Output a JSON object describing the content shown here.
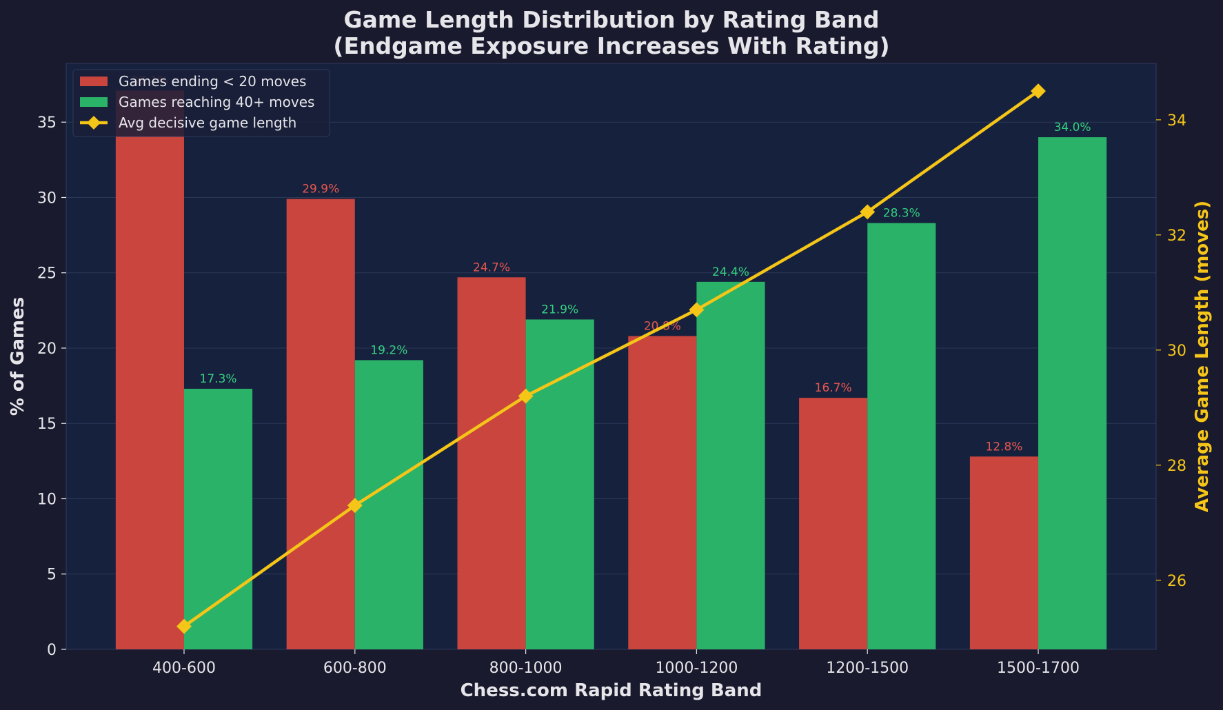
{
  "chart_data": {
    "type": "bar",
    "title": "Game Length Distribution by Rating Band",
    "subtitle": "(Endgame Exposure Increases With Rating)",
    "xlabel": "Chess.com Rapid Rating Band",
    "ylabel": "% of Games",
    "y2label": "Average Game Length (moves)",
    "categories": [
      "400-600",
      "600-800",
      "800-1000",
      "1000-1200",
      "1200-1500",
      "1500-1700"
    ],
    "series": [
      {
        "name": "Games ending < 20 moves",
        "kind": "bar",
        "axis": "left",
        "color": "#c9453e",
        "values": [
          37.1,
          29.9,
          24.7,
          20.8,
          16.7,
          12.8
        ],
        "labels": [
          "37.1%",
          "29.9%",
          "24.7%",
          "20.8%",
          "16.7%",
          "12.8%"
        ]
      },
      {
        "name": "Games reaching 40+ moves",
        "kind": "bar",
        "axis": "left",
        "color": "#2ab368",
        "values": [
          17.3,
          19.2,
          21.9,
          24.4,
          28.3,
          34.0
        ],
        "labels": [
          "17.3%",
          "19.2%",
          "21.9%",
          "24.4%",
          "28.3%",
          "34.0%"
        ]
      },
      {
        "name": "Avg decisive game length",
        "kind": "line",
        "axis": "right",
        "color": "#f5c518",
        "values": [
          25.2,
          27.3,
          29.2,
          30.7,
          32.4,
          34.5
        ]
      }
    ],
    "ylim": [
      0,
      38.9
    ],
    "yticks": [
      0,
      5,
      10,
      15,
      20,
      25,
      30,
      35
    ],
    "y2lim": [
      24.8,
      34.98
    ],
    "y2ticks": [
      26,
      28,
      30,
      32,
      34
    ],
    "grid": "horizontal",
    "legend": "top-left",
    "colors": {
      "background": "#1a1a2e",
      "plot_background": "#16213e",
      "text": "#e6e6ea",
      "right_axis": "#f5c518"
    }
  }
}
